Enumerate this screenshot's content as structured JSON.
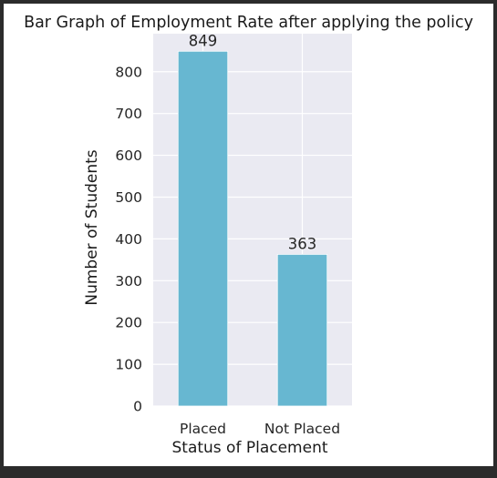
{
  "chart_data": {
    "type": "bar",
    "title": "Bar Graph of Employment Rate after applying the policy",
    "xlabel": "Status of Placement",
    "ylabel": "Number of Students",
    "categories": [
      "Placed",
      "Not Placed"
    ],
    "values": [
      849,
      363
    ],
    "data_labels": [
      "849",
      "363"
    ],
    "ylim": [
      0,
      891
    ],
    "yticks": [
      0,
      100,
      200,
      300,
      400,
      500,
      600,
      700,
      800
    ],
    "grid": true,
    "legend": "none",
    "colors": {
      "bar": "#67b7d1",
      "plot_background": "#eaeaf2",
      "grid": "#ffffff"
    }
  }
}
